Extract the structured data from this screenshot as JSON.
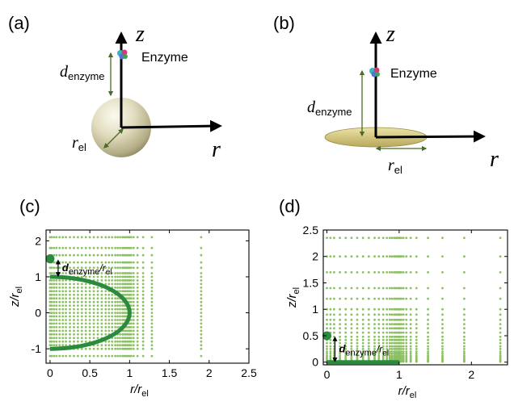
{
  "panels": {
    "a": {
      "label": "(a)",
      "z_axis": "z",
      "r_axis": "r",
      "enzyme_label": "Enzyme",
      "d_label": "d",
      "d_sub": "enzyme",
      "r_label": "r",
      "r_sub": "el"
    },
    "b": {
      "label": "(b)",
      "z_axis": "z",
      "r_axis": "r",
      "enzyme_label": "Enzyme",
      "d_label": "d",
      "d_sub": "enzyme",
      "r_label": "r",
      "r_sub": "el"
    },
    "c": {
      "label": "(c)",
      "annotation": "d",
      "annotation_sub1": "enzyme",
      "annotation_mid": "/r",
      "annotation_sub2": "el"
    },
    "d": {
      "label": "(d)",
      "annotation": "d",
      "annotation_sub1": "enzyme",
      "annotation_mid": "/r",
      "annotation_sub2": "el"
    }
  },
  "colors": {
    "mesh": "#8cc063",
    "electrode": "#2a8a3e",
    "arrow": "#4a6b2a",
    "sphere_light": "#f4f2e0",
    "sphere_dark": "#8c8660",
    "disk": "#c8b96a"
  },
  "chart_data": [
    {
      "type": "scatter",
      "panel": "c",
      "xlabel": "r/r",
      "xlabel_sub": "el",
      "ylabel": "z/r",
      "ylabel_sub": "el",
      "xlim": [
        -0.05,
        2.5
      ],
      "ylim": [
        -1.4,
        2.3
      ],
      "xticks": [
        0,
        0.5,
        1,
        1.5,
        2,
        2.5
      ],
      "xtick_labels": [
        "0",
        "0.5",
        "1",
        "1.5",
        "2",
        "2.5"
      ],
      "yticks": [
        -1,
        0,
        1,
        2
      ],
      "ytick_labels": [
        "-1",
        "0",
        "1",
        "2"
      ],
      "mesh_x_columns": [
        0,
        0.02,
        0.05,
        0.08,
        0.12,
        0.16,
        0.2,
        0.25,
        0.3,
        0.35,
        0.4,
        0.45,
        0.5,
        0.55,
        0.6,
        0.65,
        0.7,
        0.74,
        0.78,
        0.82,
        0.85,
        0.88,
        0.91,
        0.93,
        0.95,
        0.97,
        0.99,
        1.0,
        1.02,
        1.05,
        1.1,
        1.17,
        1.28,
        1.9
      ],
      "mesh_y_rows": [
        2.1,
        1.8,
        1.6,
        1.4,
        1.25,
        1.1,
        1.0,
        0.9,
        0.8,
        0.7,
        0.6,
        0.5,
        0.4,
        0.3,
        0.2,
        0.1,
        0.0,
        -0.1,
        -0.2,
        -0.3,
        -0.4,
        -0.5,
        -0.6,
        -0.7,
        -0.8,
        -0.9,
        -1.0,
        -1.2
      ],
      "electrode": {
        "shape": "sphere",
        "radius": 1
      },
      "enzyme_point": {
        "x": 0,
        "y": 1.5
      }
    },
    {
      "type": "scatter",
      "panel": "d",
      "xlabel": "r/r",
      "xlabel_sub": "el",
      "ylabel": "z/r",
      "ylabel_sub": "el",
      "xlim": [
        -0.05,
        2.5
      ],
      "ylim": [
        -0.05,
        2.5
      ],
      "xticks": [
        0,
        1,
        2
      ],
      "xtick_labels": [
        "0",
        "1",
        "2"
      ],
      "yticks": [
        0,
        0.5,
        1,
        1.5,
        2,
        2.5
      ],
      "ytick_labels": [
        "0",
        "0.5",
        "1",
        "1.5",
        "2",
        "2.5"
      ],
      "mesh_x_columns": [
        0,
        0.05,
        0.1,
        0.18,
        0.26,
        0.34,
        0.42,
        0.5,
        0.58,
        0.66,
        0.72,
        0.78,
        0.83,
        0.87,
        0.9,
        0.93,
        0.95,
        0.97,
        0.99,
        1.0,
        1.01,
        1.03,
        1.06,
        1.1,
        1.16,
        1.24,
        1.4,
        1.6,
        1.9,
        2.4
      ],
      "mesh_y_rows": [
        2.35,
        2.0,
        1.7,
        1.4,
        1.2,
        1.0,
        0.9,
        0.8,
        0.72,
        0.64,
        0.56,
        0.48,
        0.42,
        0.36,
        0.3,
        0.25,
        0.2,
        0.16,
        0.12,
        0.09,
        0.06,
        0.04,
        0.02,
        0.01
      ],
      "electrode": {
        "shape": "disk",
        "radius": 1
      },
      "enzyme_point": {
        "x": 0,
        "y": 0.5
      }
    }
  ]
}
